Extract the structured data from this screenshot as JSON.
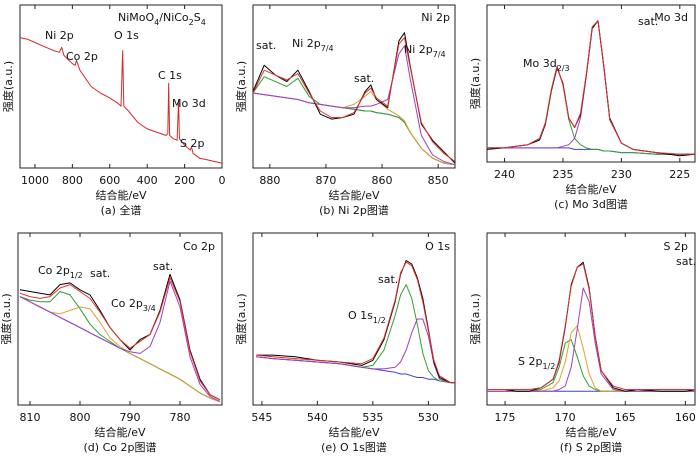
{
  "chart_data": [
    {
      "type": "line",
      "caption": "(a) 全谱",
      "xlabel": "结合能/eV",
      "ylabel": "强度(a.u.)",
      "title": [
        "NiMoO",
        "4",
        "/NiCo",
        "2",
        "S",
        "4"
      ],
      "xlim": [
        1080,
        0
      ],
      "ylim": [
        0,
        100
      ],
      "xticks": [
        1000,
        800,
        600,
        400,
        200,
        0
      ],
      "x": [
        1080,
        1040,
        1000,
        960,
        900,
        870,
        857,
        845,
        800,
        785,
        778,
        760,
        700,
        650,
        600,
        560,
        540,
        531,
        525,
        500,
        450,
        400,
        350,
        300,
        290,
        285,
        280,
        260,
        240,
        232,
        228,
        200,
        170,
        163,
        155,
        120,
        80,
        40,
        0
      ],
      "series": [
        {
          "color": "#d62a2a",
          "values": [
            80,
            79,
            77,
            75,
            72,
            71,
            74,
            69,
            64,
            63,
            66,
            60,
            50,
            46,
            43,
            40,
            38,
            72,
            38,
            35,
            28,
            24,
            22,
            20,
            21,
            52,
            20,
            18,
            17,
            42,
            18,
            14,
            11,
            13,
            9,
            6,
            5,
            4,
            3
          ]
        }
      ],
      "annotations": [
        "Ni 2p",
        "Co 2p",
        "O 1s",
        "C 1s",
        "Mo 3d",
        "S 2p"
      ]
    },
    {
      "type": "line",
      "caption": "(b) Ni 2p图谱",
      "xlabel": "结合能/eV",
      "ylabel": "强度(a.u.)",
      "title": "Ni 2p",
      "xlim": [
        883,
        847
      ],
      "ylim": [
        0,
        100
      ],
      "xticks": [
        880,
        870,
        860,
        850
      ],
      "x": [
        883,
        881,
        879,
        877,
        875,
        873,
        871,
        869,
        867,
        865,
        863,
        862,
        861,
        859,
        857,
        856,
        855,
        853,
        851,
        849,
        847
      ],
      "series": [
        {
          "color": "#4040d0",
          "values": [
            46,
            45,
            44,
            43,
            42,
            40,
            39,
            38,
            37,
            36,
            35,
            35,
            34,
            33,
            31,
            28,
            22,
            12,
            6,
            3,
            2
          ]
        },
        {
          "color": "#30a030",
          "values": [
            46,
            56,
            53,
            50,
            55,
            44,
            39,
            38,
            37,
            36,
            35,
            35,
            34,
            33,
            31,
            28,
            22,
            12,
            6,
            3,
            2
          ]
        },
        {
          "color": "#e0a030",
          "values": [
            46,
            45,
            44,
            43,
            42,
            40,
            39,
            38,
            37,
            39,
            44,
            47,
            42,
            36,
            32,
            29,
            22,
            12,
            6,
            3,
            2
          ]
        },
        {
          "color": "#a040c0",
          "values": [
            46,
            45,
            44,
            43,
            42,
            40,
            39,
            38,
            37,
            37,
            38,
            38,
            39,
            42,
            70,
            75,
            55,
            20,
            8,
            4,
            2
          ]
        },
        {
          "color": "#000000",
          "values": [
            47,
            63,
            57,
            53,
            60,
            47,
            33,
            30,
            31,
            33,
            47,
            51,
            42,
            37,
            78,
            83,
            63,
            27,
            17,
            10,
            3
          ]
        },
        {
          "color": "#e03030",
          "values": [
            46,
            60,
            57,
            54,
            58,
            46,
            35,
            31,
            31,
            34,
            46,
            49,
            43,
            38,
            76,
            80,
            62,
            28,
            16,
            9,
            4
          ]
        }
      ],
      "annotations": [
        "sat.",
        [
          "Ni 2p",
          "7/4"
        ],
        "sat.",
        [
          "Ni 2p",
          "7/4"
        ]
      ]
    },
    {
      "type": "line",
      "caption": "(c) Mo 3d图谱",
      "xlabel": "结合能/eV",
      "ylabel": "强度(a.u.)",
      "title": "Mo 3d",
      "xlim": [
        241.5,
        223.7
      ],
      "ylim": [
        0,
        100
      ],
      "xticks": [
        240,
        235,
        230,
        225
      ],
      "x": [
        241.5,
        240,
        239,
        238,
        237,
        236.5,
        236,
        235.5,
        235,
        234.5,
        234,
        233.5,
        233,
        232.5,
        232,
        231.5,
        231,
        230,
        229,
        227,
        225,
        223.7
      ],
      "series": [
        {
          "color": "#4040d0",
          "values": [
            9,
            9,
            9,
            9,
            9,
            9,
            9,
            9,
            9,
            9,
            8,
            8,
            8,
            8,
            8,
            7,
            7,
            6,
            6,
            5,
            5,
            5
          ]
        },
        {
          "color": "#30a030",
          "values": [
            9,
            9,
            10,
            11,
            15,
            25,
            46,
            61,
            49,
            27,
            15,
            11,
            9,
            8,
            8,
            7,
            7,
            6,
            6,
            5,
            5,
            5
          ]
        },
        {
          "color": "#a040c0",
          "values": [
            9,
            9,
            9,
            9,
            9,
            9,
            9,
            9,
            10,
            11,
            15,
            28,
            55,
            86,
            90,
            61,
            27,
            12,
            8,
            6,
            5,
            5
          ]
        },
        {
          "color": "#000000",
          "values": [
            8,
            9,
            10,
            11,
            14,
            24,
            45,
            60,
            50,
            28,
            22,
            30,
            55,
            85,
            90,
            60,
            28,
            12,
            8,
            6,
            4,
            5
          ]
        },
        {
          "color": "#e03030",
          "values": [
            9,
            9,
            10,
            11,
            15,
            25,
            46,
            61,
            49,
            28,
            22,
            31,
            56,
            86,
            90,
            61,
            27,
            12,
            8,
            6,
            5,
            5
          ]
        }
      ],
      "annotations": [
        [
          "Mo 3d",
          "2/3"
        ],
        "sat."
      ]
    },
    {
      "type": "line",
      "caption": "(d) Co 2p图谱",
      "xlabel": "结合能/eV",
      "ylabel": "强度(a.u.)",
      "title": "Co 2p",
      "xlim": [
        812.4,
        771.6
      ],
      "ylim": [
        0,
        100
      ],
      "xticks": [
        810,
        800,
        790,
        780
      ],
      "x": [
        812,
        810,
        808,
        806,
        804,
        802,
        800,
        798,
        796,
        794,
        792,
        790,
        788,
        786,
        784,
        782,
        780,
        778,
        776,
        774,
        772
      ],
      "series": [
        {
          "color": "#4040d0",
          "values": [
            63,
            60,
            57,
            54,
            51,
            48,
            45,
            42,
            39,
            36,
            33,
            30,
            27,
            24,
            21,
            18,
            15,
            11,
            7,
            4,
            2
          ]
        },
        {
          "color": "#30a030",
          "values": [
            63,
            61,
            60,
            60,
            66,
            64,
            56,
            47,
            41,
            37,
            33,
            30,
            27,
            24,
            21,
            18,
            15,
            11,
            7,
            4,
            2
          ]
        },
        {
          "color": "#e0a030",
          "values": [
            63,
            60,
            57,
            54,
            53,
            55,
            57,
            56,
            48,
            39,
            34,
            30,
            27,
            24,
            21,
            18,
            15,
            11,
            7,
            4,
            2
          ]
        },
        {
          "color": "#a040c0",
          "values": [
            63,
            60,
            57,
            54,
            51,
            48,
            45,
            42,
            39,
            36,
            33,
            31,
            30,
            34,
            48,
            72,
            57,
            28,
            12,
            5,
            2
          ]
        },
        {
          "color": "#000000",
          "values": [
            67,
            66,
            65,
            64,
            70,
            71,
            67,
            64,
            55,
            45,
            38,
            32,
            38,
            41,
            55,
            76,
            61,
            32,
            15,
            6,
            3
          ]
        },
        {
          "color": "#e03030",
          "values": [
            65,
            63,
            62,
            63,
            68,
            70,
            66,
            62,
            54,
            45,
            38,
            33,
            37,
            41,
            54,
            74,
            60,
            31,
            14,
            6,
            3
          ]
        }
      ],
      "annotations": [
        [
          "Co 2p",
          "1/2"
        ],
        "sat.",
        [
          "Co 2p",
          "3/4"
        ],
        "sat."
      ]
    },
    {
      "type": "line",
      "caption": "(e) O 1s图谱",
      "xlabel": "结合能/eV",
      "ylabel": "强度(a.u.)",
      "title": "O 1s",
      "xlim": [
        545.8,
        527.6
      ],
      "ylim": [
        0,
        100
      ],
      "xticks": [
        545,
        540,
        535,
        530
      ],
      "x": [
        545.5,
        544,
        542,
        540,
        538,
        536,
        535,
        534,
        533,
        532.5,
        532,
        531.5,
        531,
        530.5,
        530,
        529.5,
        529,
        528,
        527.6
      ],
      "series": [
        {
          "color": "#4040d0",
          "values": [
            28,
            27,
            26,
            25,
            24,
            22,
            21,
            20,
            19,
            18,
            18,
            17,
            16,
            16,
            15,
            15,
            14,
            13,
            13
          ]
        },
        {
          "color": "#30a030",
          "values": [
            28,
            27,
            26,
            25,
            24,
            22,
            23,
            32,
            52,
            64,
            70,
            62,
            47,
            30,
            20,
            16,
            14,
            13,
            13
          ]
        },
        {
          "color": "#a040c0",
          "values": [
            28,
            27,
            26,
            25,
            24,
            22,
            21,
            21,
            22,
            25,
            32,
            42,
            50,
            50,
            40,
            24,
            15,
            13,
            13
          ]
        },
        {
          "color": "#000000",
          "values": [
            29,
            29,
            28,
            26,
            25,
            23,
            26,
            38,
            60,
            76,
            84,
            82,
            74,
            62,
            44,
            25,
            16,
            13,
            13
          ]
        },
        {
          "color": "#e03030",
          "values": [
            29,
            28,
            27,
            26,
            25,
            24,
            27,
            39,
            61,
            77,
            83,
            81,
            73,
            60,
            43,
            26,
            17,
            13,
            13
          ]
        }
      ],
      "annotations": [
        "sat.",
        [
          "O 1s",
          "1/2"
        ]
      ]
    },
    {
      "type": "line",
      "caption": "(f) S 2p图谱",
      "xlabel": "结合能/eV",
      "ylabel": "强度(a.u.)",
      "title": "S 2p",
      "xlim": [
        176.5,
        159.2
      ],
      "ylim": [
        0,
        100
      ],
      "xticks": [
        175,
        170,
        165,
        160
      ],
      "x": [
        176.5,
        175,
        174,
        173,
        172,
        171,
        170.5,
        170,
        169.5,
        169,
        168.5,
        168,
        167.5,
        167,
        166,
        165,
        164,
        162,
        160,
        159.2
      ],
      "series": [
        {
          "color": "#4040d0",
          "values": [
            8,
            8,
            8,
            8,
            8,
            8,
            8,
            8,
            8,
            8,
            8,
            8,
            8,
            8,
            8,
            8,
            8,
            8,
            8,
            8
          ]
        },
        {
          "color": "#30a030",
          "values": [
            8,
            8,
            8,
            8,
            9,
            13,
            22,
            36,
            38,
            28,
            17,
            11,
            9,
            8,
            8,
            8,
            8,
            8,
            8,
            8
          ]
        },
        {
          "color": "#e0a030",
          "values": [
            8,
            8,
            8,
            8,
            8,
            10,
            14,
            25,
            42,
            46,
            33,
            18,
            10,
            8,
            8,
            8,
            8,
            8,
            8,
            8
          ]
        },
        {
          "color": "#a040c0",
          "values": [
            8,
            8,
            8,
            8,
            8,
            8,
            9,
            11,
            22,
            44,
            68,
            60,
            36,
            18,
            9,
            8,
            8,
            8,
            8,
            8
          ]
        },
        {
          "color": "#000000",
          "values": [
            9,
            9,
            8,
            8,
            10,
            15,
            25,
            45,
            70,
            80,
            83,
            68,
            40,
            20,
            10,
            8,
            9,
            8,
            8,
            9
          ]
        },
        {
          "color": "#e03030",
          "values": [
            9,
            9,
            9,
            9,
            10,
            15,
            26,
            46,
            69,
            80,
            82,
            67,
            40,
            20,
            11,
            9,
            9,
            9,
            9,
            9
          ]
        }
      ],
      "annotations": [
        "sat.",
        [
          "S 2p",
          "1/2"
        ]
      ]
    }
  ]
}
